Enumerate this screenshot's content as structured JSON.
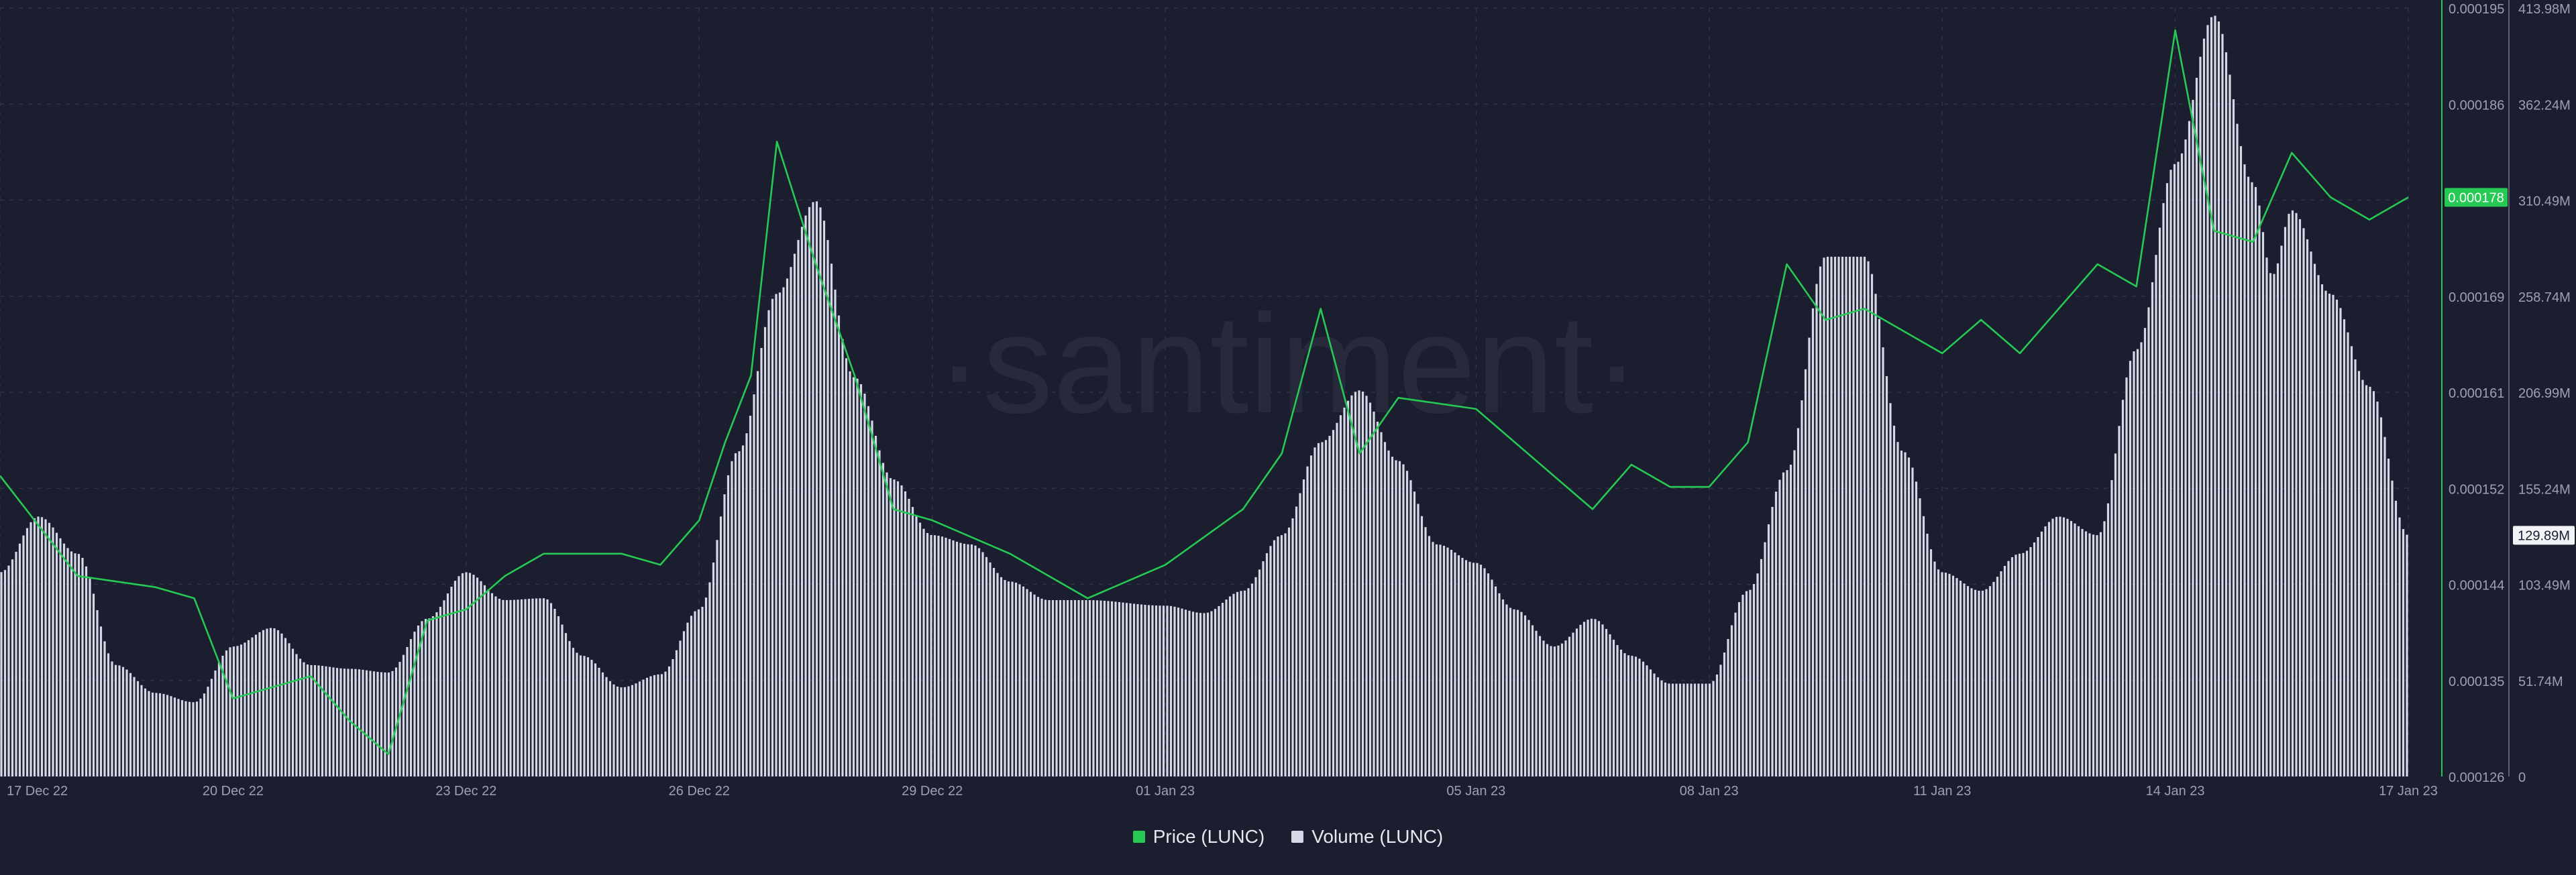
{
  "watermark": "·santiment·",
  "colors": {
    "background": "#1b1e2e",
    "price": "#26c953",
    "volume": "#d5d8e6",
    "grid": "#2e3345",
    "axis_text": "#9ba1b3"
  },
  "legend": {
    "price_label": "Price (LUNC)",
    "volume_label": "Volume (LUNC)"
  },
  "chart_data": {
    "type": "line+bar",
    "x_axis": {
      "type": "date",
      "tick_labels": [
        "17 Dec 22",
        "20 Dec 22",
        "23 Dec 22",
        "26 Dec 22",
        "29 Dec 22",
        "01 Jan 23",
        "05 Jan 23",
        "08 Jan 23",
        "11 Jan 23",
        "14 Jan 23",
        "17 Jan 23"
      ],
      "range": [
        "17 Dec 22",
        "17 Jan 23"
      ]
    },
    "price_axis": {
      "position": "right-inner",
      "ticks": [
        "0.000126",
        "0.000135",
        "0.000144",
        "0.000152",
        "0.000161",
        "0.000169",
        "0.000178",
        "0.000186",
        "0.000195"
      ],
      "ylim": [
        0.000126,
        0.000195
      ],
      "current_value": "0.000178"
    },
    "volume_axis": {
      "position": "right-outer",
      "ticks": [
        "0",
        "51.74M",
        "103.49M",
        "155.24M",
        "206.99M",
        "258.74M",
        "310.49M",
        "362.24M",
        "413.98M"
      ],
      "ylim": [
        0,
        413.98
      ],
      "unit": "M",
      "current_value": "129.89M"
    },
    "grid": true,
    "legend_position": "bottom-center",
    "series": [
      {
        "name": "Price (LUNC)",
        "kind": "line",
        "color": "#26c953",
        "points": [
          [
            "17 Dec 22",
            0.000153
          ],
          [
            "18 Dec 22",
            0.000144
          ],
          [
            "19 Dec 22",
            0.000143
          ],
          [
            "19 Dec 22 12:00",
            0.000142
          ],
          [
            "20 Dec 22",
            0.000133
          ],
          [
            "21 Dec 22",
            0.000135
          ],
          [
            "21 Dec 22 12:00",
            0.000131
          ],
          [
            "22 Dec 22",
            0.000128
          ],
          [
            "22 Dec 22 12:00",
            0.00014
          ],
          [
            "23 Dec 22",
            0.000141
          ],
          [
            "23 Dec 22 12:00",
            0.000144
          ],
          [
            "24 Dec 22",
            0.000146
          ],
          [
            "25 Dec 22",
            0.000146
          ],
          [
            "25 Dec 22 12:00",
            0.000145
          ],
          [
            "26 Dec 22",
            0.000149
          ],
          [
            "26 Dec 22 08:00",
            0.000156
          ],
          [
            "26 Dec 22 16:00",
            0.000162
          ],
          [
            "27 Dec 22",
            0.000183
          ],
          [
            "27 Dec 22 12:00",
            0.000172
          ],
          [
            "28 Dec 22",
            0.000162
          ],
          [
            "28 Dec 22 12:00",
            0.00015
          ],
          [
            "29 Dec 22",
            0.000149
          ],
          [
            "30 Dec 22",
            0.000146
          ],
          [
            "31 Dec 22",
            0.000142
          ],
          [
            "01 Jan 23",
            0.000145
          ],
          [
            "02 Jan 23",
            0.00015
          ],
          [
            "02 Jan 23 12:00",
            0.000155
          ],
          [
            "03 Jan 23",
            0.000168
          ],
          [
            "03 Jan 23 12:00",
            0.000155
          ],
          [
            "04 Jan 23",
            0.00016
          ],
          [
            "05 Jan 23",
            0.000159
          ],
          [
            "06 Jan 23",
            0.000153
          ],
          [
            "06 Jan 23 12:00",
            0.00015
          ],
          [
            "07 Jan 23",
            0.000154
          ],
          [
            "07 Jan 23 12:00",
            0.000152
          ],
          [
            "08 Jan 23",
            0.000152
          ],
          [
            "08 Jan 23 12:00",
            0.000156
          ],
          [
            "09 Jan 23",
            0.000172
          ],
          [
            "09 Jan 23 12:00",
            0.000167
          ],
          [
            "10 Jan 23",
            0.000168
          ],
          [
            "11 Jan 23",
            0.000164
          ],
          [
            "11 Jan 23 12:00",
            0.000167
          ],
          [
            "12 Jan 23",
            0.000164
          ],
          [
            "13 Jan 23",
            0.000172
          ],
          [
            "13 Jan 23 12:00",
            0.00017
          ],
          [
            "14 Jan 23",
            0.000193
          ],
          [
            "14 Jan 23 12:00",
            0.000175
          ],
          [
            "15 Jan 23",
            0.000174
          ],
          [
            "15 Jan 23 12:00",
            0.000182
          ],
          [
            "16 Jan 23",
            0.000178
          ],
          [
            "16 Jan 23 12:00",
            0.000176
          ],
          [
            "17 Jan 23",
            0.000178
          ]
        ]
      },
      {
        "name": "Volume (LUNC)",
        "kind": "bar",
        "color": "#d5d8e6",
        "unit": "M",
        "points": [
          [
            "17 Dec 22",
            110
          ],
          [
            "17 Dec 22 12:00",
            140
          ],
          [
            "18 Dec 22",
            120
          ],
          [
            "18 Dec 22 12:00",
            60
          ],
          [
            "19 Dec 22",
            45
          ],
          [
            "19 Dec 22 12:00",
            40
          ],
          [
            "20 Dec 22",
            70
          ],
          [
            "20 Dec 22 12:00",
            80
          ],
          [
            "21 Dec 22",
            60
          ],
          [
            "21 Dec 22 12:00",
            58
          ],
          [
            "22 Dec 22",
            56
          ],
          [
            "22 Dec 22 12:00",
            85
          ],
          [
            "23 Dec 22",
            110
          ],
          [
            "23 Dec 22 12:00",
            95
          ],
          [
            "24 Dec 22",
            96
          ],
          [
            "24 Dec 22 12:00",
            65
          ],
          [
            "25 Dec 22",
            48
          ],
          [
            "25 Dec 22 12:00",
            55
          ],
          [
            "26 Dec 22",
            90
          ],
          [
            "26 Dec 22 12:00",
            175
          ],
          [
            "27 Dec 22",
            260
          ],
          [
            "27 Dec 22 12:00",
            310
          ],
          [
            "28 Dec 22",
            215
          ],
          [
            "28 Dec 22 12:00",
            160
          ],
          [
            "29 Dec 22",
            130
          ],
          [
            "29 Dec 22 12:00",
            125
          ],
          [
            "30 Dec 22",
            105
          ],
          [
            "30 Dec 22 12:00",
            95
          ],
          [
            "31 Dec 22",
            95
          ],
          [
            "01 Jan 23",
            92
          ],
          [
            "01 Jan 23 12:00",
            88
          ],
          [
            "02 Jan 23",
            100
          ],
          [
            "02 Jan 23 12:00",
            130
          ],
          [
            "03 Jan 23",
            180
          ],
          [
            "03 Jan 23 12:00",
            208
          ],
          [
            "04 Jan 23",
            170
          ],
          [
            "04 Jan 23 12:00",
            125
          ],
          [
            "05 Jan 23",
            115
          ],
          [
            "05 Jan 23 12:00",
            90
          ],
          [
            "06 Jan 23",
            70
          ],
          [
            "06 Jan 23 12:00",
            85
          ],
          [
            "07 Jan 23",
            65
          ],
          [
            "07 Jan 23 12:00",
            50
          ],
          [
            "08 Jan 23",
            50
          ],
          [
            "08 Jan 23 12:00",
            100
          ],
          [
            "09 Jan 23",
            165
          ],
          [
            "09 Jan 23 12:00",
            280
          ],
          [
            "10 Jan 23",
            280
          ],
          [
            "10 Jan 23 12:00",
            175
          ],
          [
            "11 Jan 23",
            110
          ],
          [
            "11 Jan 23 12:00",
            100
          ],
          [
            "12 Jan 23",
            120
          ],
          [
            "12 Jan 23 12:00",
            140
          ],
          [
            "13 Jan 23",
            130
          ],
          [
            "13 Jan 23 12:00",
            230
          ],
          [
            "14 Jan 23",
            330
          ],
          [
            "14 Jan 23 12:00",
            410
          ],
          [
            "15 Jan 23",
            320
          ],
          [
            "15 Jan 23 06:00",
            270
          ],
          [
            "15 Jan 23 12:00",
            305
          ],
          [
            "16 Jan 23",
            260
          ],
          [
            "16 Jan 23 12:00",
            210
          ],
          [
            "17 Jan 23",
            130
          ]
        ]
      }
    ]
  }
}
